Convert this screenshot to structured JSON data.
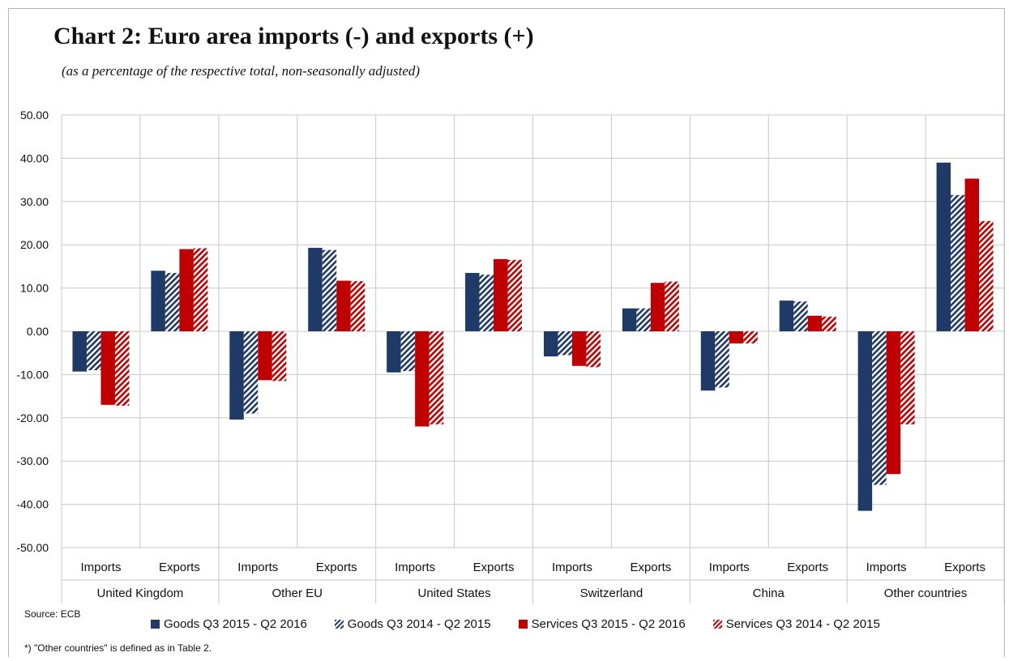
{
  "header": {
    "title": "Chart 2: Euro area imports (-) and exports (+)",
    "subtitle": "(as a percentage of the respective total, non-seasonally adjusted)"
  },
  "footer": {
    "source": "Source: ECB",
    "footnote": "*) \"Other countries\" is defined as in Table 2."
  },
  "colors": {
    "goods": "#1f3a66",
    "services": "#c00000",
    "grid": "#c8c8c8"
  },
  "chart_data": {
    "type": "bar",
    "title": "Chart 2: Euro area imports (-) and exports (+)",
    "subtitle": "(as a percentage of the respective total, non-seasonally adjusted)",
    "ylim": [
      -50,
      50
    ],
    "yticks": [
      "50.00",
      "40.00",
      "30.00",
      "20.00",
      "10.00",
      "0.00",
      "-10.00",
      "-20.00",
      "-30.00",
      "-40.00",
      "-50.00"
    ],
    "grid": true,
    "legend_position": "bottom",
    "groups": [
      "United Kingdom",
      "Other EU",
      "United States",
      "Switzerland",
      "China",
      "Other countries"
    ],
    "subcategories": [
      "Imports",
      "Exports"
    ],
    "series": [
      {
        "name": "Goods Q3 2015 - Q2 2016",
        "style": "solid",
        "color": "#1f3a66",
        "values": [
          -9.3,
          14.0,
          -20.4,
          19.3,
          -9.5,
          13.5,
          -5.8,
          5.3,
          -13.7,
          7.1,
          -41.5,
          39.0
        ]
      },
      {
        "name": "Goods Q3 2014 - Q2 2015",
        "style": "hatched",
        "color": "#1f3a66",
        "values": [
          -9.0,
          13.5,
          -19.0,
          18.8,
          -9.2,
          13.1,
          -5.5,
          5.3,
          -13.0,
          6.9,
          -35.5,
          31.5
        ]
      },
      {
        "name": "Services Q3 2015 - Q2 2016",
        "style": "solid",
        "color": "#c00000",
        "values": [
          -17.0,
          19.0,
          -11.3,
          11.7,
          -22.0,
          16.7,
          -8.0,
          11.2,
          -2.8,
          3.6,
          -33.0,
          35.3
        ]
      },
      {
        "name": "Services Q3 2014 - Q2 2015",
        "style": "hatched",
        "color": "#c00000",
        "values": [
          -17.2,
          19.2,
          -11.5,
          11.6,
          -21.5,
          16.5,
          -8.3,
          11.5,
          -2.8,
          3.4,
          -21.5,
          25.5
        ]
      }
    ]
  }
}
